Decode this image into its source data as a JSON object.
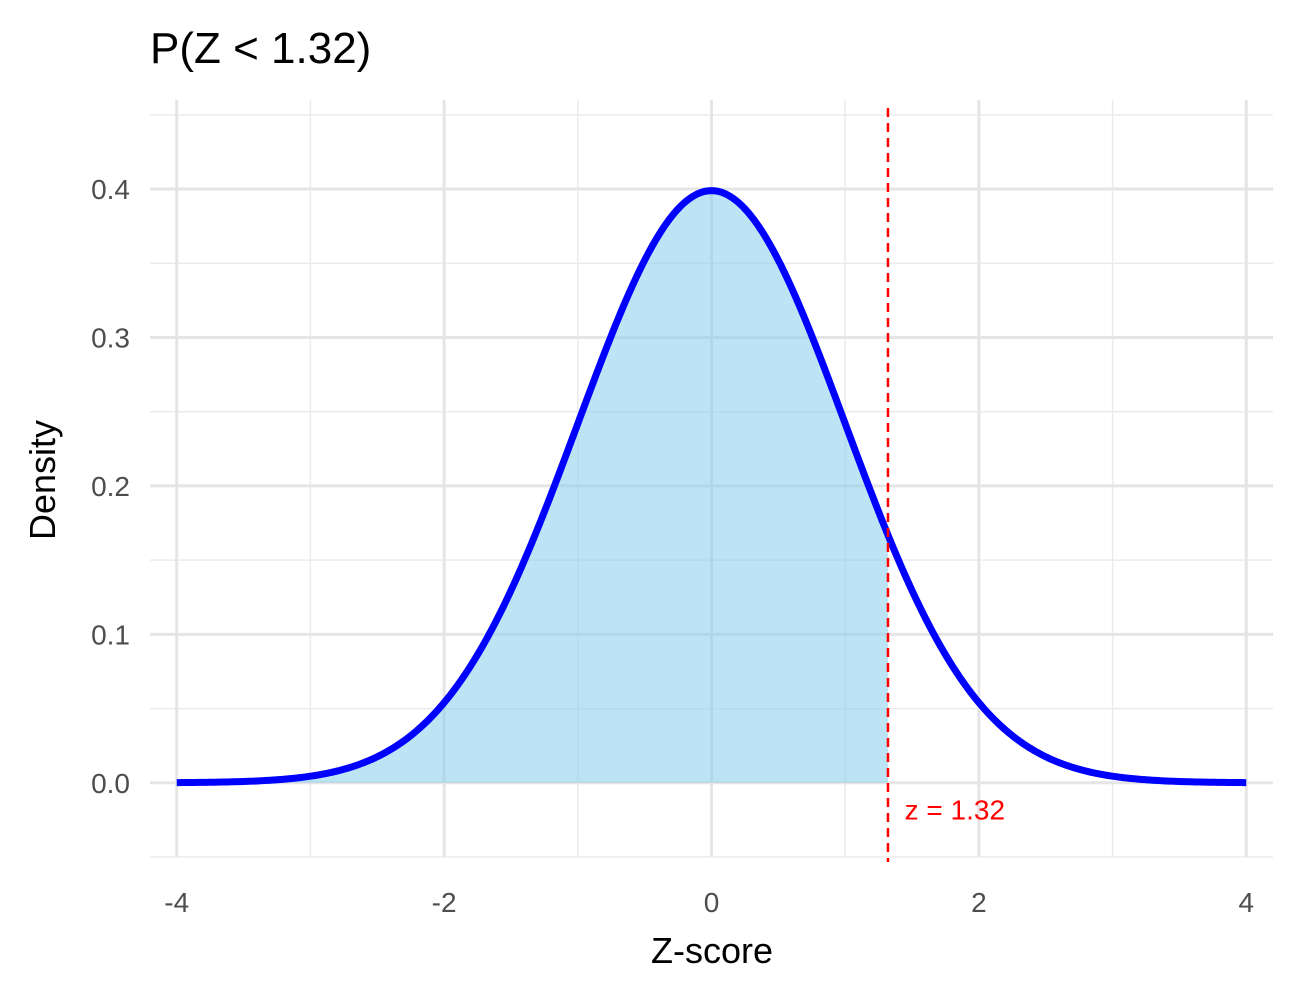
{
  "chart_data": {
    "type": "area",
    "title": "P(Z < 1.32)",
    "xlabel": "Z-score",
    "ylabel": "Density",
    "xlim": [
      -4.2,
      4.2
    ],
    "ylim": [
      -0.05,
      0.46
    ],
    "x_ticks": [
      -4,
      -2,
      0,
      2,
      4
    ],
    "x_tick_labels": [
      "-4",
      "-2",
      "0",
      "2",
      "4"
    ],
    "y_ticks": [
      0.0,
      0.1,
      0.2,
      0.3,
      0.4
    ],
    "y_tick_labels": [
      "0.0",
      "0.1",
      "0.2",
      "0.3",
      "0.4"
    ],
    "grid": true,
    "curve": {
      "distribution": "standard normal",
      "x_range": [
        -4,
        4
      ],
      "points": [
        {
          "x": -4.0,
          "y": 0.0001
        },
        {
          "x": -3.5,
          "y": 0.0009
        },
        {
          "x": -3.0,
          "y": 0.0044
        },
        {
          "x": -2.5,
          "y": 0.0175
        },
        {
          "x": -2.0,
          "y": 0.054
        },
        {
          "x": -1.5,
          "y": 0.1295
        },
        {
          "x": -1.0,
          "y": 0.242
        },
        {
          "x": -0.5,
          "y": 0.3521
        },
        {
          "x": 0.0,
          "y": 0.3989
        },
        {
          "x": 0.5,
          "y": 0.3521
        },
        {
          "x": 1.0,
          "y": 0.242
        },
        {
          "x": 1.32,
          "y": 0.1669
        },
        {
          "x": 1.5,
          "y": 0.1295
        },
        {
          "x": 2.0,
          "y": 0.054
        },
        {
          "x": 2.5,
          "y": 0.0175
        },
        {
          "x": 3.0,
          "y": 0.0044
        },
        {
          "x": 3.5,
          "y": 0.0009
        },
        {
          "x": 4.0,
          "y": 0.0001
        }
      ],
      "color": "#0000ff"
    },
    "shaded_region": {
      "from": -4,
      "to": 1.32,
      "color": "#87ceeb"
    },
    "cutoff": {
      "x": 1.32,
      "color": "#ff0000",
      "style": "dashed"
    },
    "annotation": {
      "text": "z = 1.32",
      "x": 1.82,
      "y": -0.018,
      "color": "#ff0000"
    }
  }
}
